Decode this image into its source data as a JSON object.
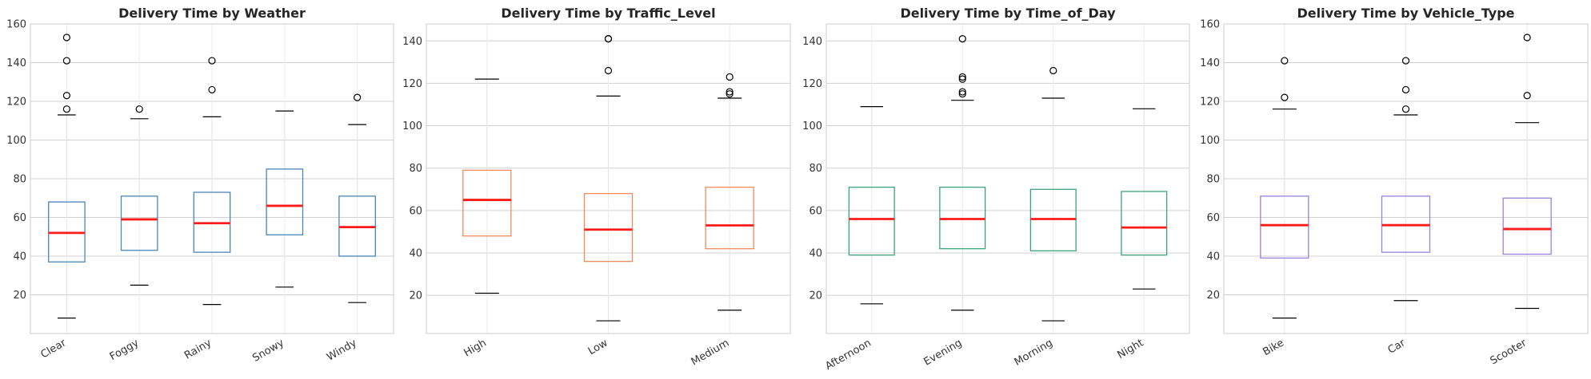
{
  "chart_data": [
    {
      "type": "box",
      "title": "Delivery Time by Weather",
      "categories": [
        "Clear",
        "Foggy",
        "Rainy",
        "Snowy",
        "Windy"
      ],
      "ylim": [
        0,
        160
      ],
      "yticks": [
        20,
        40,
        60,
        80,
        100,
        120,
        140,
        160
      ],
      "color": "#4a86b8",
      "boxes": [
        {
          "whislo": 8,
          "q1": 37,
          "med": 52,
          "q3": 68,
          "whishi": 113,
          "fliers": [
            116,
            123,
            141,
            153
          ]
        },
        {
          "whislo": 25,
          "q1": 43,
          "med": 59,
          "q3": 71,
          "whishi": 111,
          "fliers": [
            116
          ]
        },
        {
          "whislo": 15,
          "q1": 42,
          "med": 57,
          "q3": 73,
          "whishi": 112,
          "fliers": [
            126,
            141
          ]
        },
        {
          "whislo": 24,
          "q1": 51,
          "med": 66,
          "q3": 85,
          "whishi": 115,
          "fliers": []
        },
        {
          "whislo": 16,
          "q1": 40,
          "med": 55,
          "q3": 71,
          "whishi": 108,
          "fliers": [
            122
          ]
        }
      ]
    },
    {
      "type": "box",
      "title": "Delivery Time by Traffic_Level",
      "categories": [
        "High",
        "Low",
        "Medium"
      ],
      "ylim": [
        2,
        148
      ],
      "yticks": [
        20,
        40,
        60,
        80,
        100,
        120,
        140
      ],
      "color": "#f28a5e",
      "boxes": [
        {
          "whislo": 21,
          "q1": 48,
          "med": 65,
          "q3": 79,
          "whishi": 122,
          "fliers": []
        },
        {
          "whislo": 8,
          "q1": 36,
          "med": 51,
          "q3": 68,
          "whishi": 114,
          "fliers": [
            126,
            141,
            141
          ]
        },
        {
          "whislo": 13,
          "q1": 42,
          "med": 53,
          "q3": 71,
          "whishi": 113,
          "fliers": [
            115,
            116,
            123
          ]
        }
      ]
    },
    {
      "type": "box",
      "title": "Delivery Time by Time_of_Day",
      "categories": [
        "Afternoon",
        "Evening",
        "Morning",
        "Night"
      ],
      "ylim": [
        2,
        148
      ],
      "yticks": [
        20,
        40,
        60,
        80,
        100,
        120,
        140
      ],
      "color": "#3aa57a",
      "boxes": [
        {
          "whislo": 16,
          "q1": 39,
          "med": 56,
          "q3": 71,
          "whishi": 109,
          "fliers": []
        },
        {
          "whislo": 13,
          "q1": 42,
          "med": 56,
          "q3": 71,
          "whishi": 112,
          "fliers": [
            115,
            116,
            122,
            123,
            141
          ]
        },
        {
          "whislo": 8,
          "q1": 41,
          "med": 56,
          "q3": 70,
          "whishi": 113,
          "fliers": [
            126
          ]
        },
        {
          "whislo": 23,
          "q1": 39,
          "med": 52,
          "q3": 69,
          "whishi": 108,
          "fliers": []
        }
      ]
    },
    {
      "type": "box",
      "title": "Delivery Time by Vehicle_Type",
      "categories": [
        "Bike",
        "Car",
        "Scooter"
      ],
      "ylim": [
        0,
        160
      ],
      "yticks": [
        20,
        40,
        60,
        80,
        100,
        120,
        140,
        160
      ],
      "color": "#9b7fe0",
      "boxes": [
        {
          "whislo": 8,
          "q1": 39,
          "med": 56,
          "q3": 71,
          "whishi": 116,
          "fliers": [
            122,
            141
          ]
        },
        {
          "whislo": 17,
          "q1": 42,
          "med": 56,
          "q3": 71,
          "whishi": 113,
          "fliers": [
            116,
            126,
            141
          ]
        },
        {
          "whislo": 13,
          "q1": 41,
          "med": 54,
          "q3": 70,
          "whishi": 109,
          "fliers": [
            123,
            153
          ]
        }
      ]
    }
  ],
  "style": {
    "median_color": "#ff1a1a",
    "whisker_color": "#000000",
    "flier_color": "#000000",
    "grid_color": "#d0d0d0",
    "frame_color": "#cccccc"
  }
}
